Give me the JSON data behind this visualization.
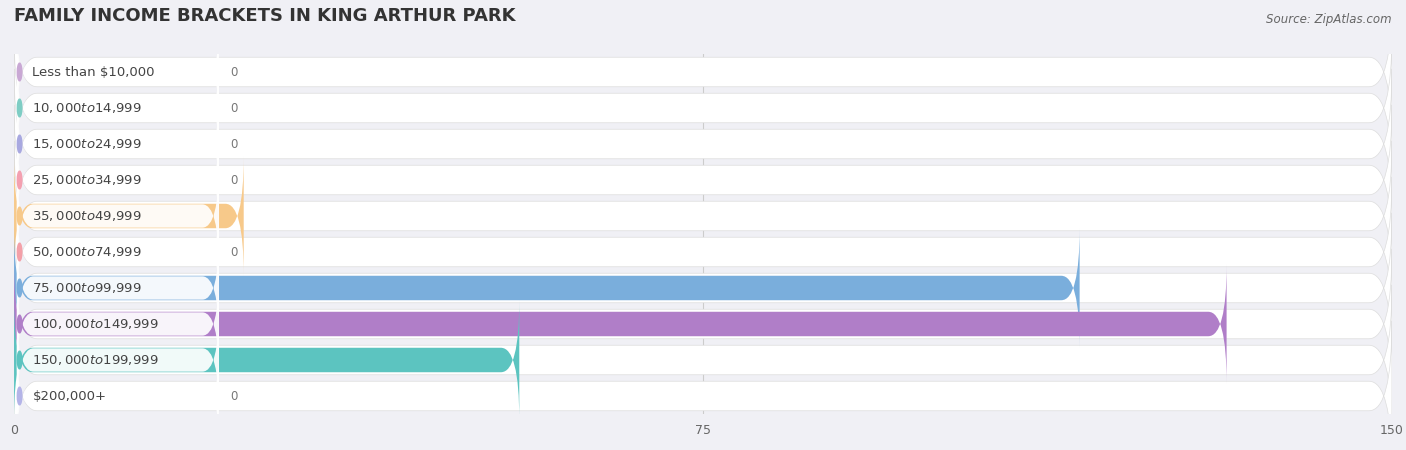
{
  "title": "FAMILY INCOME BRACKETS IN KING ARTHUR PARK",
  "source": "Source: ZipAtlas.com",
  "categories": [
    "Less than $10,000",
    "$10,000 to $14,999",
    "$15,000 to $24,999",
    "$25,000 to $34,999",
    "$35,000 to $49,999",
    "$50,000 to $74,999",
    "$75,000 to $99,999",
    "$100,000 to $149,999",
    "$150,000 to $199,999",
    "$200,000+"
  ],
  "values": [
    0,
    0,
    0,
    0,
    25,
    0,
    116,
    132,
    55,
    0
  ],
  "bar_colors": [
    "#c9a8d4",
    "#7ecdc4",
    "#a8a8e0",
    "#f4a0b0",
    "#f7c98a",
    "#f4a0a8",
    "#7aaedc",
    "#b07ec8",
    "#5cc4c0",
    "#b4b4e8"
  ],
  "xlim": [
    0,
    150
  ],
  "xticks": [
    0,
    75,
    150
  ],
  "title_fontsize": 13,
  "label_fontsize": 9.5,
  "value_fontsize": 8.5,
  "fig_bg": "#f0f0f5",
  "row_bg": "#ffffff",
  "chart_bg": "#f0f0f5"
}
